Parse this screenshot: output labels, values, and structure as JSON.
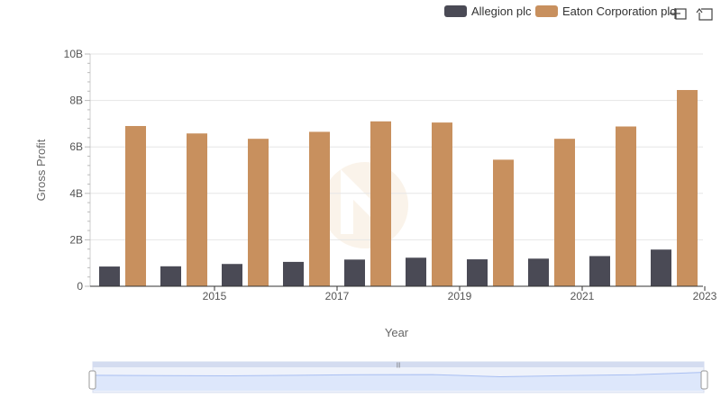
{
  "chart_data": {
    "type": "bar",
    "title": "",
    "xlabel": "Year",
    "ylabel": "Gross Profit",
    "categories": [
      "2014",
      "2015",
      "2016",
      "2017",
      "2018",
      "2019",
      "2020",
      "2021",
      "2022",
      "2023"
    ],
    "x_tick_labels": [
      "2015",
      "2017",
      "2019",
      "2021",
      "2023"
    ],
    "y_tick_labels": [
      "0",
      "2B",
      "4B",
      "6B",
      "8B",
      "10B"
    ],
    "ylim": [
      0,
      10000000000
    ],
    "grid": true,
    "legend_position": "top-right",
    "series": [
      {
        "name": "Allegion plc",
        "color": "#4a4a55",
        "values": [
          850000000,
          860000000,
          960000000,
          1050000000,
          1150000000,
          1230000000,
          1160000000,
          1190000000,
          1300000000,
          1580000000
        ]
      },
      {
        "name": "Eaton Corporation plc",
        "color": "#c8905e",
        "values": [
          6900000000,
          6580000000,
          6350000000,
          6650000000,
          7100000000,
          7050000000,
          5450000000,
          6350000000,
          6880000000,
          8450000000
        ]
      }
    ]
  },
  "toolbar": {
    "zoom_icon": "crosshair-zoom-icon",
    "reset_icon": "reset-arrow-icon"
  },
  "navigator": {
    "line_color": "#a9bff2",
    "fill_color": "#dde7fb"
  }
}
